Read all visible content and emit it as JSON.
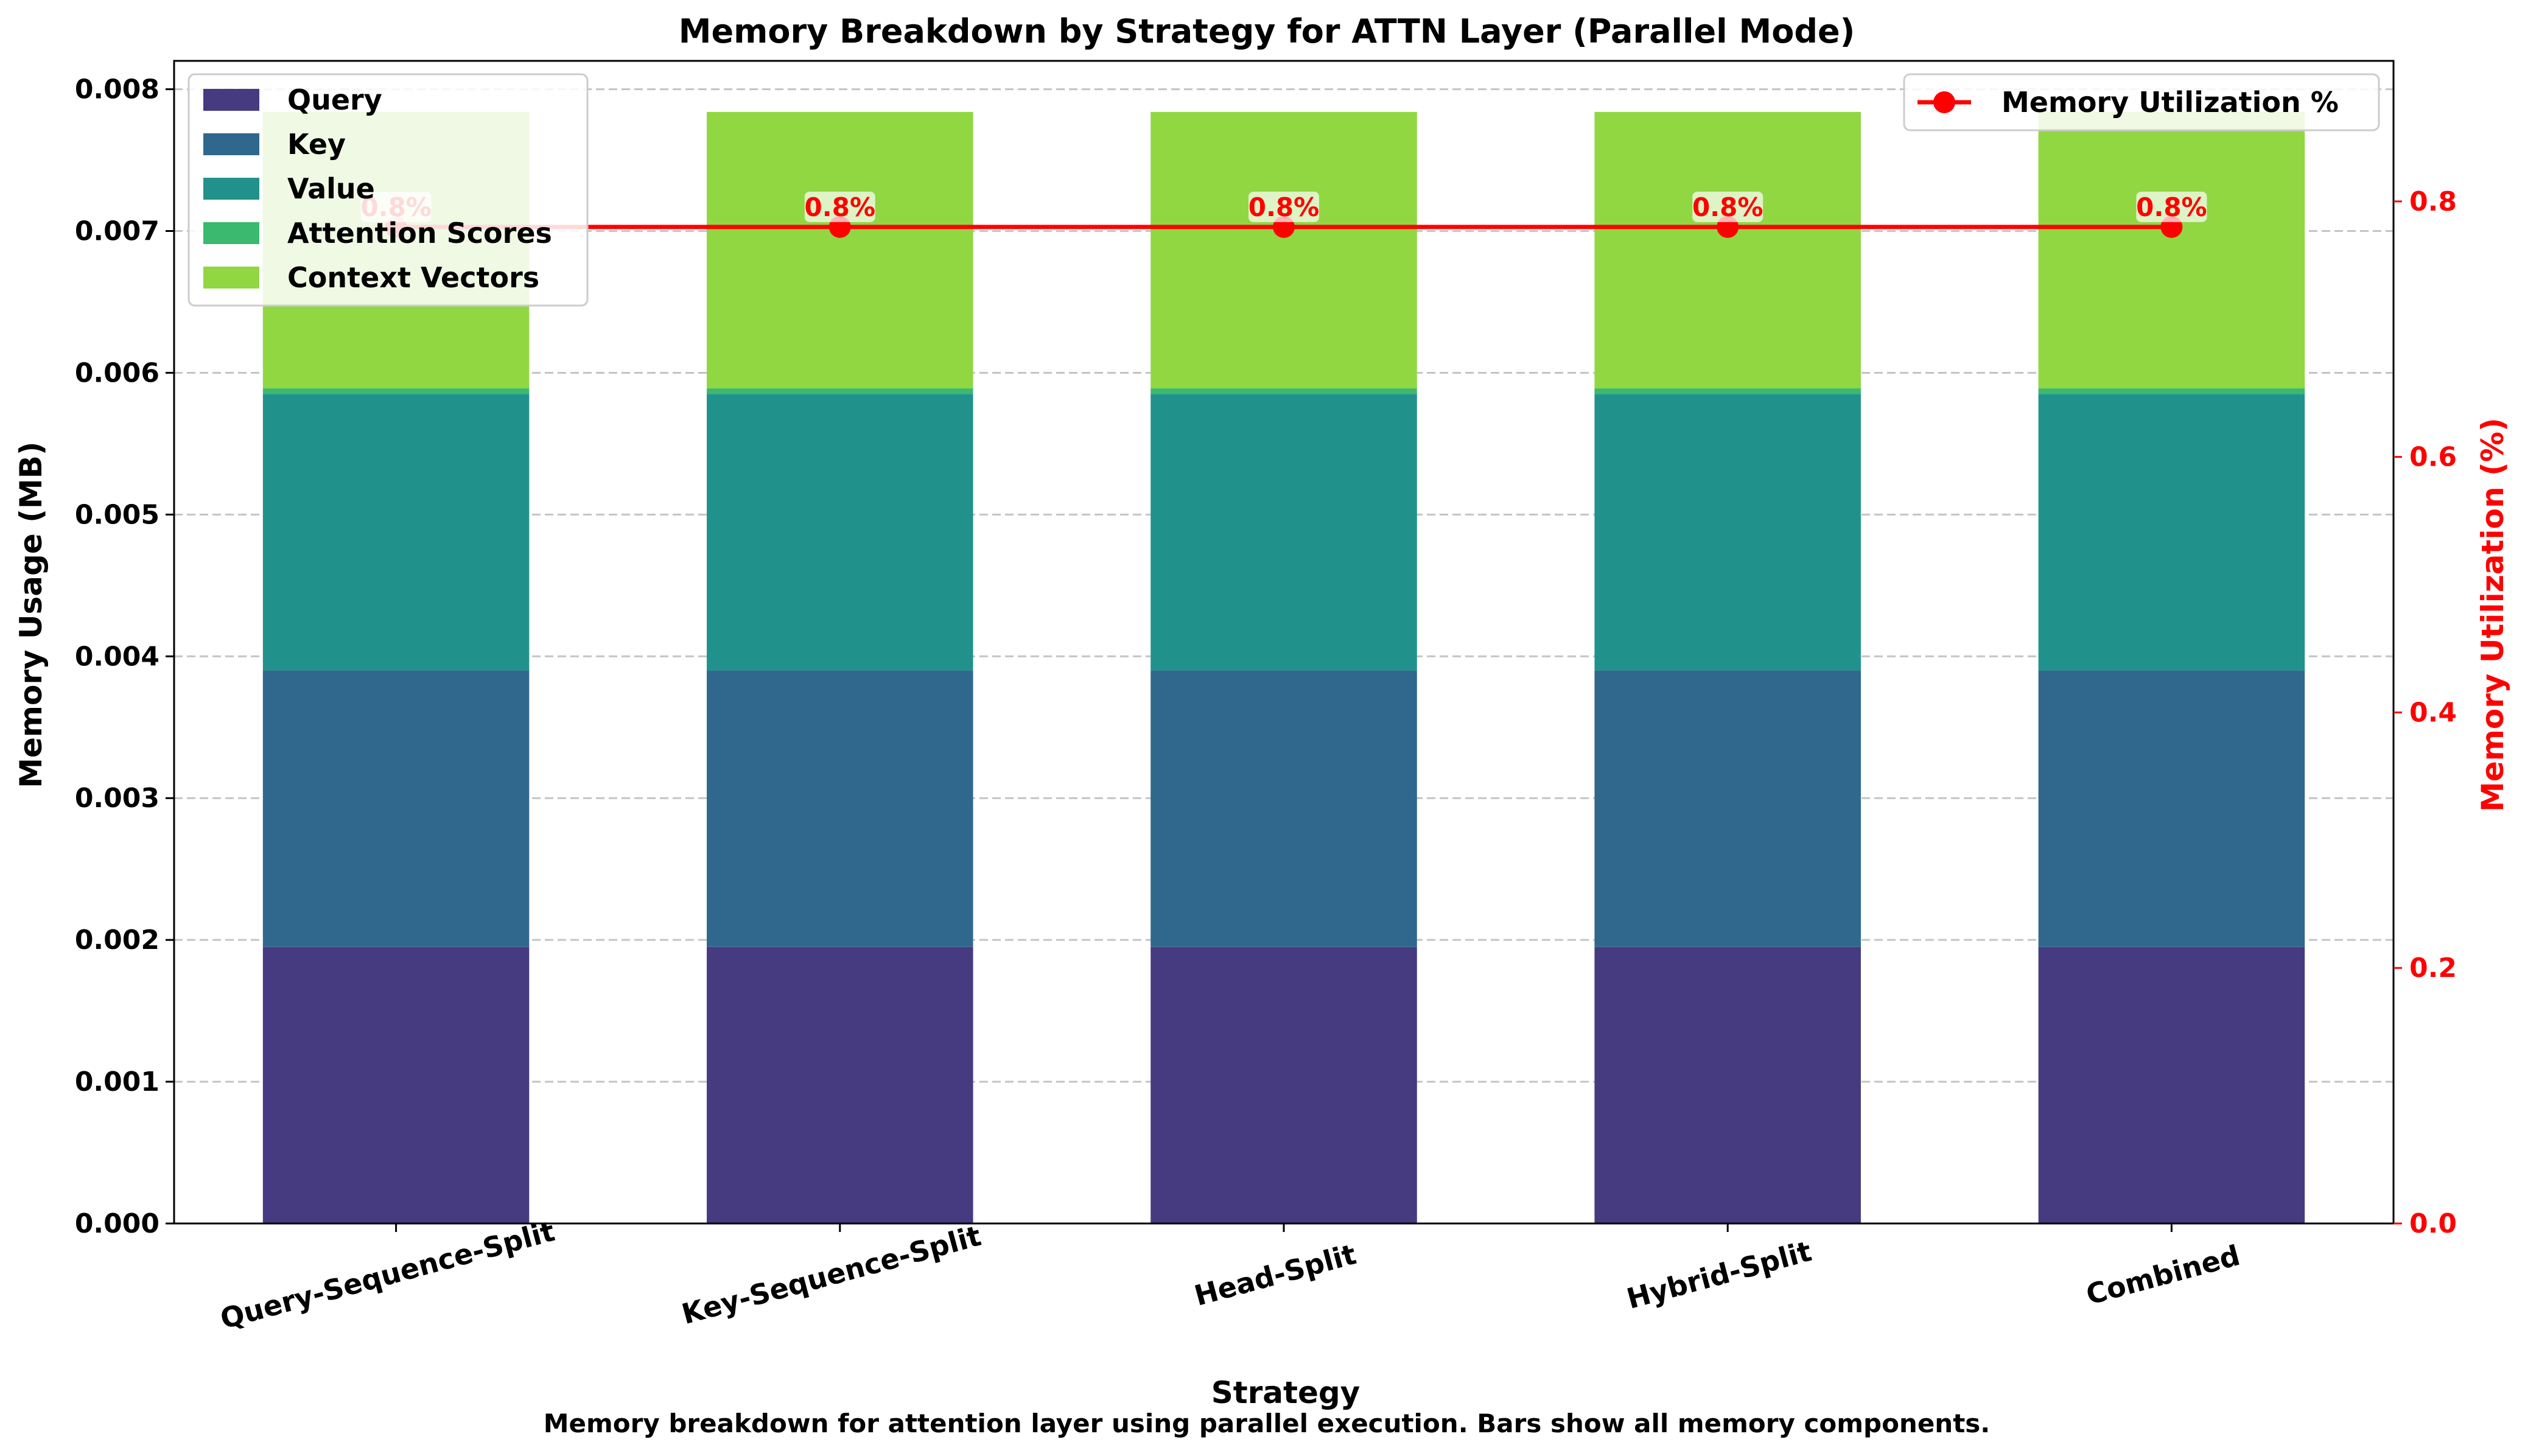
{
  "chart_data": {
    "type": "bar",
    "stacked": true,
    "title": "Memory Breakdown by Strategy for ATTN Layer (Parallel Mode)",
    "xlabel": "Strategy",
    "ylabel": "Memory Usage (MB)",
    "y2label": "Memory Utilization (%)",
    "caption": "Memory breakdown for attention layer using parallel execution. Bars show all memory components.",
    "categories": [
      "Query-Sequence-Split",
      "Key-Sequence-Split",
      "Head-Split",
      "Hybrid-Split",
      "Combined"
    ],
    "series": [
      {
        "name": "Query",
        "color": "#463a81",
        "values": [
          0.00195,
          0.00195,
          0.00195,
          0.00195,
          0.00195
        ]
      },
      {
        "name": "Key",
        "color": "#30688d",
        "values": [
          0.00195,
          0.00195,
          0.00195,
          0.00195,
          0.00195
        ]
      },
      {
        "name": "Value",
        "color": "#21928b",
        "values": [
          0.00195,
          0.00195,
          0.00195,
          0.00195,
          0.00195
        ]
      },
      {
        "name": "Attention Scores",
        "color": "#3ab96f",
        "values": [
          4e-05,
          4e-05,
          4e-05,
          4e-05,
          4e-05
        ]
      },
      {
        "name": "Context Vectors",
        "color": "#91d742",
        "values": [
          0.00195,
          0.00195,
          0.00195,
          0.00195,
          0.00195
        ]
      }
    ],
    "line_series": {
      "name": "Memory Utilization %",
      "color": "#ff0000",
      "values": [
        0.78,
        0.78,
        0.78,
        0.78,
        0.78
      ],
      "labels": [
        "0.8%",
        "0.8%",
        "0.8%",
        "0.8%",
        "0.8%"
      ]
    },
    "ylim": [
      0,
      0.0082
    ],
    "y2lim": [
      0,
      0.91
    ],
    "yticks": [
      "0.000",
      "0.001",
      "0.002",
      "0.003",
      "0.004",
      "0.005",
      "0.006",
      "0.007",
      "0.008"
    ],
    "y2ticks": [
      "0.0",
      "0.2",
      "0.4",
      "0.6",
      "0.8"
    ],
    "grid": "y-dashed",
    "legend_position": "top-left",
    "legend2_position": "top-right"
  }
}
